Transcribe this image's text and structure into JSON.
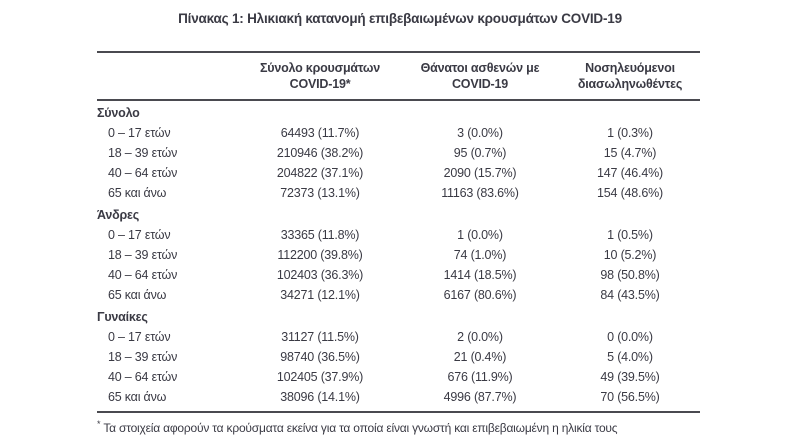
{
  "title": "Πίνακας 1: Ηλικιακή κατανομή επιβεβαιωμένων κρουσμάτων COVID-19",
  "colors": {
    "text": "#3a3a44",
    "rule": "#4a4a50",
    "background": "#ffffff"
  },
  "table": {
    "header": {
      "cases_line1": "Σύνολο κρουσμάτων",
      "cases_line2": "COVID-19*",
      "deaths_line1": "Θάνατοι ασθενών με",
      "deaths_line2": "COVID-19",
      "intubated_line1": "Νοσηλευόμενοι",
      "intubated_line2": "διασωληνωθέντες"
    },
    "sections": [
      {
        "label": "Σύνολο",
        "rows": [
          {
            "age": "0 – 17 ετών",
            "cases": "64493 (11.7%)",
            "deaths": "3 (0.0%)",
            "intubated": "1 (0.3%)"
          },
          {
            "age": "18 – 39 ετών",
            "cases": "210946 (38.2%)",
            "deaths": "95 (0.7%)",
            "intubated": "15 (4.7%)"
          },
          {
            "age": "40 – 64 ετών",
            "cases": "204822 (37.1%)",
            "deaths": "2090 (15.7%)",
            "intubated": "147 (46.4%)"
          },
          {
            "age": "65 και άνω",
            "cases": "72373 (13.1%)",
            "deaths": "11163 (83.6%)",
            "intubated": "154 (48.6%)"
          }
        ]
      },
      {
        "label": "Άνδρες",
        "rows": [
          {
            "age": "0 – 17 ετών",
            "cases": "33365 (11.8%)",
            "deaths": "1 (0.0%)",
            "intubated": "1 (0.5%)"
          },
          {
            "age": "18 – 39 ετών",
            "cases": "112200 (39.8%)",
            "deaths": "74 (1.0%)",
            "intubated": "10 (5.2%)"
          },
          {
            "age": "40 – 64 ετών",
            "cases": "102403 (36.3%)",
            "deaths": "1414 (18.5%)",
            "intubated": "98 (50.8%)"
          },
          {
            "age": "65 και άνω",
            "cases": "34271 (12.1%)",
            "deaths": "6167 (80.6%)",
            "intubated": "84 (43.5%)"
          }
        ]
      },
      {
        "label": "Γυναίκες",
        "rows": [
          {
            "age": "0 – 17 ετών",
            "cases": "31127 (11.5%)",
            "deaths": "2 (0.0%)",
            "intubated": "0 (0.0%)"
          },
          {
            "age": "18 – 39 ετών",
            "cases": "98740 (36.5%)",
            "deaths": "21 (0.4%)",
            "intubated": "5 (4.0%)"
          },
          {
            "age": "40 – 64 ετών",
            "cases": "102405 (37.9%)",
            "deaths": "676 (11.9%)",
            "intubated": "49 (39.5%)"
          },
          {
            "age": "65 και άνω",
            "cases": "38096 (14.1%)",
            "deaths": "4996 (87.7%)",
            "intubated": "70 (56.5%)"
          }
        ]
      }
    ]
  },
  "footnote": {
    "marker": "*",
    "text": "Τα στοιχεία αφορούν τα κρούσματα εκείνα για τα οποία είναι γνωστή και επιβεβαιωμένη η ηλικία τους"
  }
}
